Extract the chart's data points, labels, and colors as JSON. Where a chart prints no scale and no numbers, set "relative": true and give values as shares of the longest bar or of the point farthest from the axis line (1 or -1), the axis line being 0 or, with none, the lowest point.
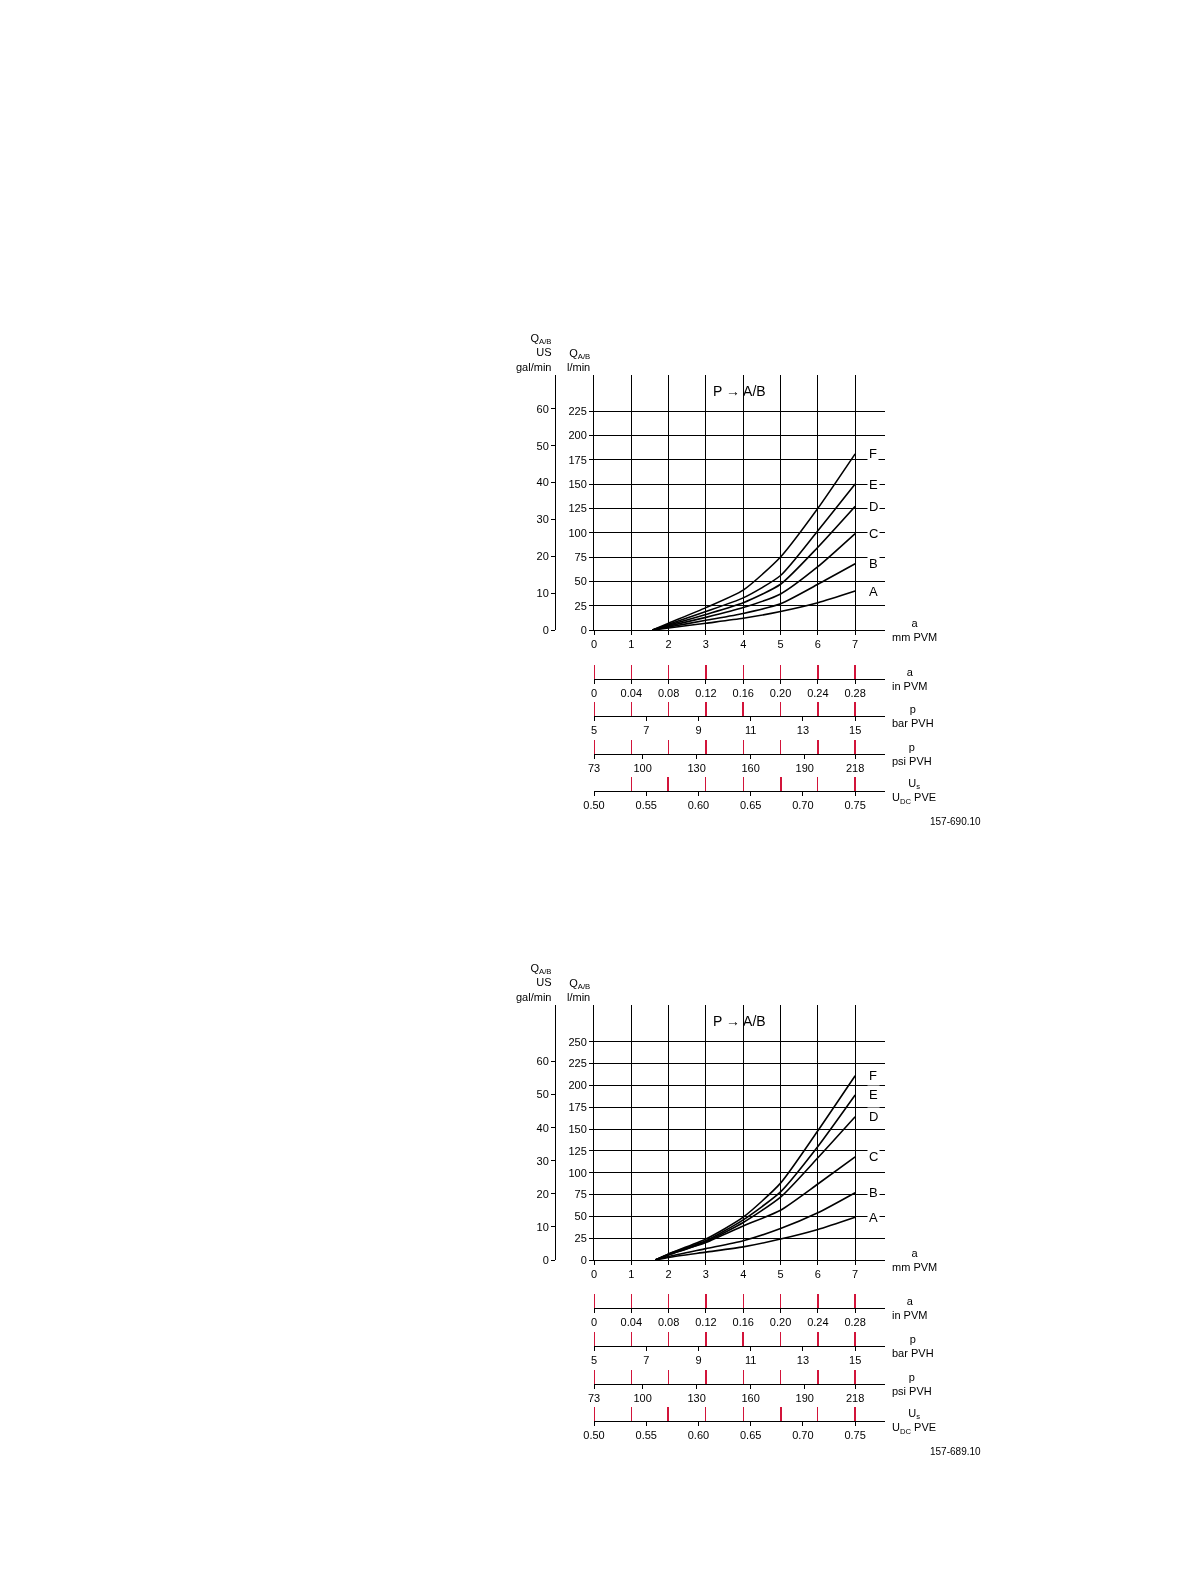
{
  "chart_data": [
    {
      "type": "line",
      "annotations": [
        "P → A/B"
      ],
      "ylabel": "Q$_{A/B}$\nl/min",
      "y2label": "Q$_{A/B}$\nUS\ngal/min",
      "xlabel": "a\nmm PVM",
      "xlim": [
        0,
        7.8
      ],
      "xticks": [
        0,
        1,
        2,
        3,
        4,
        5,
        6,
        7
      ],
      "ylim": [
        0,
        262
      ],
      "yticks": [
        0,
        25,
        50,
        75,
        100,
        125,
        150,
        175,
        200,
        225
      ],
      "y2lim": [
        0,
        69.2
      ],
      "y2ticks": [
        0,
        10,
        20,
        30,
        40,
        50,
        60
      ],
      "grid": true,
      "legend": false,
      "marker": "none",
      "line_style": "solid",
      "x": [
        1.57,
        2,
        3,
        4,
        5,
        6,
        7
      ],
      "series": [
        {
          "name": "A",
          "color": "#000000",
          "values": [
            0,
            2,
            7,
            12,
            19,
            28,
            40
          ]
        },
        {
          "name": "B",
          "color": "#000000",
          "values": [
            0,
            3,
            10,
            17,
            27,
            47,
            68
          ]
        },
        {
          "name": "C",
          "color": "#000000",
          "values": [
            0,
            4,
            13,
            23,
            37,
            65,
            99
          ]
        },
        {
          "name": "D",
          "color": "#000000",
          "values": [
            0,
            5,
            16,
            28,
            47,
            85,
            127
          ]
        },
        {
          "name": "E",
          "color": "#000000",
          "values": [
            0,
            6,
            19,
            33,
            56,
            102,
            150
          ]
        },
        {
          "name": "F",
          "color": "#000000",
          "values": [
            0,
            7,
            23,
            41,
            75,
            125,
            181
          ]
        }
      ]
    },
    {
      "type": "bar",
      "relative": true,
      "xlabel": "a\nin PVM",
      "xlim": [
        0,
        0.312
      ],
      "xticks": [
        0,
        0.04,
        0.08,
        0.12,
        0.16,
        {
          "value": 0.2,
          "label": "0.20"
        },
        0.24,
        0.28
      ],
      "x": [
        0,
        0.04,
        0.08,
        0.12,
        0.16,
        0.2,
        0.24,
        0.28
      ],
      "values": [
        1,
        1,
        1,
        1,
        1,
        1,
        1,
        1
      ],
      "color": "#d2143a"
    },
    {
      "type": "bar",
      "relative": true,
      "xlabel": "p\nbar PVH",
      "xlim": [
        5,
        16.14
      ],
      "xticks": [
        5,
        7,
        9,
        11,
        13,
        15
      ],
      "x": [
        5,
        6.43,
        7.86,
        9.29,
        10.71,
        12.14,
        13.57,
        15
      ],
      "values": [
        1,
        1,
        1,
        1,
        1,
        1,
        1,
        1
      ],
      "color": "#d2143a"
    },
    {
      "type": "bar",
      "relative": true,
      "xlabel": "p\npsi PVH",
      "xlim": [
        73,
        234.6
      ],
      "xticks": [
        73,
        100,
        130,
        160,
        190,
        218
      ],
      "x": [
        73,
        93.7,
        114.4,
        135.1,
        155.9,
        176.6,
        197.3,
        218
      ],
      "values": [
        1,
        1,
        1,
        1,
        1,
        1,
        1,
        1
      ],
      "color": "#d2143a"
    },
    {
      "type": "bar",
      "relative": true,
      "xlabel": "U$_{s}$\nU$_{DC}$ PVE",
      "xlim": [
        0.5,
        0.7786
      ],
      "xticks": [
        {
          "value": 0.5,
          "label": "0.50"
        },
        0.55,
        {
          "value": 0.6,
          "label": "0.60"
        },
        0.65,
        {
          "value": 0.7,
          "label": "0.70"
        },
        0.75
      ],
      "annotations": [
        "157-690.10"
      ],
      "x": [
        0.536,
        0.571,
        0.607,
        0.643,
        0.679,
        0.714,
        0.75
      ],
      "values": [
        1,
        1,
        1,
        1,
        1,
        1,
        1
      ],
      "color": "#d2143a"
    },
    {
      "type": "line",
      "annotations": [
        "P → A/B"
      ],
      "ylabel": "Q$_{A/B}$\nl/min",
      "y2label": "Q$_{A/B}$\nUS\ngal/min",
      "xlabel": "a\nmm PVM",
      "xlim": [
        0,
        7.8
      ],
      "xticks": [
        0,
        1,
        2,
        3,
        4,
        5,
        6,
        7
      ],
      "ylim": [
        0,
        292
      ],
      "yticks": [
        0,
        25,
        50,
        75,
        100,
        125,
        150,
        175,
        200,
        225,
        250
      ],
      "y2lim": [
        0,
        77.1
      ],
      "y2ticks": [
        0,
        10,
        20,
        30,
        40,
        50,
        60
      ],
      "grid": true,
      "legend": false,
      "marker": "none",
      "line_style": "solid",
      "x": [
        1.64,
        2,
        3,
        4,
        5,
        6,
        7
      ],
      "series": [
        {
          "name": "A",
          "color": "#000000",
          "values": [
            0,
            3,
            9,
            15,
            24,
            35,
            49
          ]
        },
        {
          "name": "B",
          "color": "#000000",
          "values": [
            0,
            4,
            13,
            22,
            36,
            54,
            77
          ]
        },
        {
          "name": "C",
          "color": "#000000",
          "values": [
            0,
            6,
            20,
            39,
            57,
            87,
            118
          ]
        },
        {
          "name": "D",
          "color": "#000000",
          "values": [
            0,
            6,
            21,
            43,
            72,
            117,
            164
          ]
        },
        {
          "name": "E",
          "color": "#000000",
          "values": [
            0,
            7,
            22,
            46,
            78,
            130,
            189
          ]
        },
        {
          "name": "F",
          "color": "#000000",
          "values": [
            0,
            7,
            24,
            49,
            88,
            148,
            211
          ]
        }
      ]
    },
    {
      "type": "bar",
      "relative": true,
      "xlabel": "a\nin PVM",
      "xlim": [
        0,
        0.312
      ],
      "xticks": [
        0,
        0.04,
        0.08,
        0.12,
        0.16,
        {
          "value": 0.2,
          "label": "0.20"
        },
        0.24,
        0.28
      ],
      "x": [
        0,
        0.04,
        0.08,
        0.12,
        0.16,
        0.2,
        0.24,
        0.28
      ],
      "values": [
        1,
        1,
        1,
        1,
        1,
        1,
        1,
        1
      ],
      "color": "#d2143a"
    },
    {
      "type": "bar",
      "relative": true,
      "xlabel": "p\nbar PVH",
      "xlim": [
        5,
        16.14
      ],
      "xticks": [
        5,
        7,
        9,
        11,
        13,
        15
      ],
      "x": [
        5,
        6.43,
        7.86,
        9.29,
        10.71,
        12.14,
        13.57,
        15
      ],
      "values": [
        1,
        1,
        1,
        1,
        1,
        1,
        1,
        1
      ],
      "color": "#d2143a"
    },
    {
      "type": "bar",
      "relative": true,
      "xlabel": "p\npsi PVH",
      "xlim": [
        73,
        234.6
      ],
      "xticks": [
        73,
        100,
        130,
        160,
        190,
        218
      ],
      "x": [
        73,
        93.7,
        114.4,
        135.1,
        155.9,
        176.6,
        197.3,
        218
      ],
      "values": [
        1,
        1,
        1,
        1,
        1,
        1,
        1,
        1
      ],
      "color": "#d2143a"
    },
    {
      "type": "bar",
      "relative": true,
      "xlabel": "U$_{s}$\nU$_{DC}$ PVE",
      "xlim": [
        0.5,
        0.7786
      ],
      "xticks": [
        {
          "value": 0.5,
          "label": "0.50"
        },
        0.55,
        {
          "value": 0.6,
          "label": "0.60"
        },
        0.65,
        {
          "value": 0.7,
          "label": "0.70"
        },
        0.75
      ],
      "annotations": [
        "157-689.10"
      ],
      "x": [
        0.5,
        0.536,
        0.571,
        0.607,
        0.643,
        0.679,
        0.714,
        0.75
      ],
      "values": [
        1,
        1,
        1,
        1,
        1,
        1,
        1,
        1
      ],
      "color": "#d2143a"
    }
  ]
}
